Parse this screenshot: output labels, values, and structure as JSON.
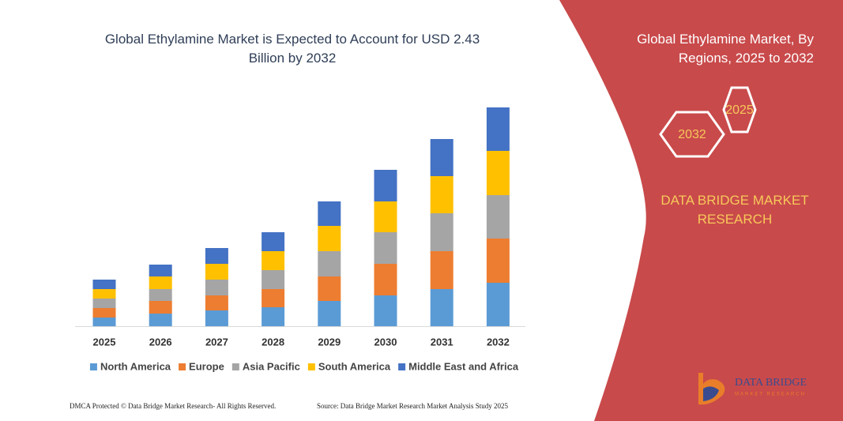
{
  "chart_data": {
    "type": "bar",
    "stacked": true,
    "title": "Global Ethylamine Market is Expected to Account for USD 2.43 Billion by 2032",
    "categories": [
      "2025",
      "2026",
      "2027",
      "2028",
      "2029",
      "2030",
      "2031",
      "2032"
    ],
    "series": [
      {
        "name": "North America",
        "color": "#5b9bd5",
        "values": [
          11,
          16,
          20,
          24,
          32,
          39,
          47,
          55
        ]
      },
      {
        "name": "Europe",
        "color": "#ed7d31",
        "values": [
          12,
          16,
          19,
          23,
          31,
          40,
          48,
          56
        ]
      },
      {
        "name": "Asia Pacific",
        "color": "#a5a5a5",
        "values": [
          12,
          15,
          20,
          24,
          32,
          40,
          48,
          55
        ]
      },
      {
        "name": "South America",
        "color": "#ffc000",
        "values": [
          12,
          16,
          20,
          24,
          32,
          39,
          47,
          56
        ]
      },
      {
        "name": "Middle East and Africa",
        "color": "#4472c4",
        "values": [
          12,
          15,
          20,
          24,
          31,
          40,
          47,
          55
        ]
      }
    ]
  },
  "panel": {
    "title": "Global Ethylamine Market, By Regions, 2025 to 2032",
    "hex_labels": [
      "2025",
      "2032"
    ],
    "brand": "DATA BRIDGE MARKET RESEARCH"
  },
  "logo": {
    "name": "DATA BRIDGE",
    "tagline": "MARKET RESEARCH"
  },
  "footer": {
    "left": "DMCA Protected © Data Bridge Market Research- All Rights Reserved.",
    "right": "Source: Data Bridge Market Research Market Analysis Study 2025"
  }
}
